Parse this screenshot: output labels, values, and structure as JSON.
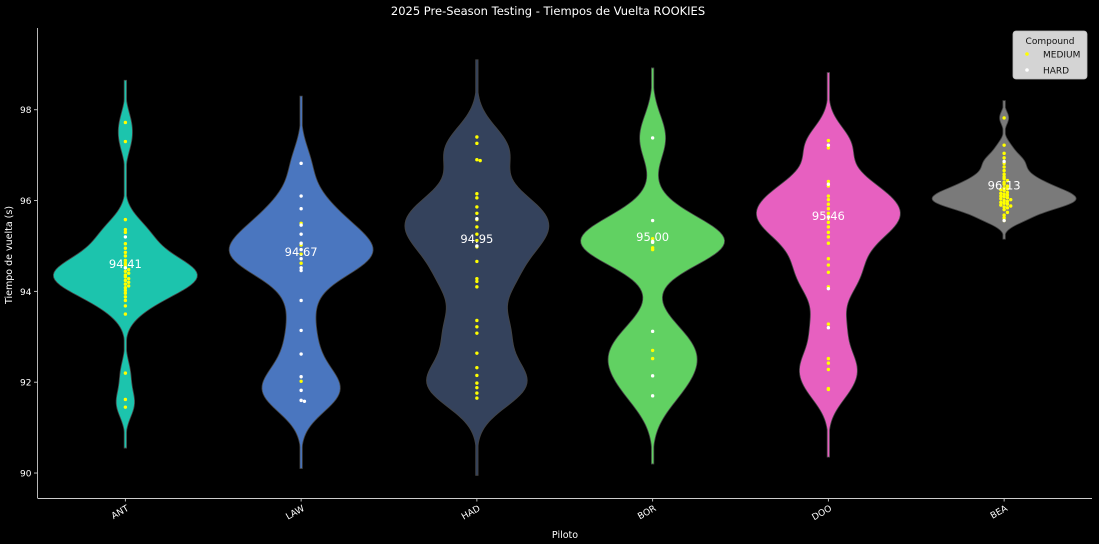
{
  "chart_data": {
    "type": "violin",
    "title": "2025 Pre-Season Testing - Tiempos de Vuelta ROOKIES",
    "xlabel": "Piloto",
    "ylabel": "Tiempo de vuelta (s)",
    "categories": [
      "ANT",
      "LAW",
      "HAD",
      "BOR",
      "DOO",
      "BEA"
    ],
    "ylim": [
      89.45,
      99.8
    ],
    "yticks": [
      90,
      92,
      94,
      96,
      98
    ],
    "ytick_labels": [
      "90",
      "92",
      "94",
      "96",
      "98"
    ],
    "grid": false,
    "legend": {
      "title": "Compound",
      "placement": "top-right",
      "entries": [
        {
          "label": "MEDIUM",
          "color": "#ffff00"
        },
        {
          "label": "HARD",
          "color": "#ffffff"
        }
      ]
    },
    "colors": {
      "background": "#000000",
      "axis": "#cccccc",
      "text": "#ffffff",
      "violins": [
        "#1cc4ad",
        "#4a76bf",
        "#34425c",
        "#61d162",
        "#e760c0",
        "#7a7a7a"
      ]
    },
    "mean_labels": [
      "94.41",
      "94.67",
      "94.95",
      "95.00",
      "95.46",
      "96.13"
    ],
    "violins": [
      {
        "driver": "ANT",
        "mean": 94.41,
        "min": 90.55,
        "max": 98.65,
        "medium": [
          97.72,
          97.3,
          95.58,
          95.36,
          95.3,
          95.05,
          94.95,
          94.86,
          94.78,
          94.68,
          94.62,
          94.57,
          94.52,
          94.48,
          94.44,
          94.4,
          94.36,
          94.32,
          94.28,
          94.24,
          94.2,
          94.16,
          94.12,
          94.08,
          94.02,
          93.96,
          93.88,
          93.8,
          93.68,
          93.5,
          92.2,
          91.62,
          91.45
        ],
        "hard": [
          95.2,
          94.52
        ]
      },
      {
        "driver": "LAW",
        "mean": 94.67,
        "min": 90.1,
        "max": 98.3,
        "medium": [
          95.5,
          95.02,
          94.82,
          94.62,
          92.02
        ],
        "hard": [
          96.82,
          96.1,
          95.82,
          95.46,
          95.26,
          95.06,
          94.92,
          94.72,
          94.52,
          94.46,
          93.8,
          93.14,
          92.62,
          92.12,
          91.82,
          91.6,
          91.58
        ]
      },
      {
        "driver": "HAD",
        "mean": 94.95,
        "min": 89.95,
        "max": 99.1,
        "medium": [
          97.4,
          97.26,
          96.9,
          96.88,
          96.15,
          96.06,
          95.86,
          95.72,
          95.58,
          95.42,
          95.26,
          95.12,
          94.98,
          94.66,
          94.28,
          94.22,
          94.1,
          93.36,
          93.22,
          93.08,
          92.64,
          92.32,
          92.15,
          91.98,
          91.88,
          91.76,
          91.65
        ],
        "hard": [
          95.6,
          95.0
        ]
      },
      {
        "driver": "BOR",
        "mean": 95.0,
        "min": 90.2,
        "max": 98.92,
        "medium": [
          95.16,
          94.96,
          94.92,
          92.7,
          92.52
        ],
        "hard": [
          97.38,
          95.56,
          95.1,
          95.08,
          93.12,
          92.14,
          91.7
        ]
      },
      {
        "driver": "DOO",
        "mean": 95.46,
        "min": 90.35,
        "max": 98.82,
        "medium": [
          97.32,
          97.16,
          96.42,
          96.32,
          96.1,
          96.02,
          95.92,
          95.82,
          95.72,
          95.62,
          95.52,
          95.42,
          95.3,
          95.2,
          95.06,
          94.72,
          94.58,
          94.42,
          94.1,
          93.28,
          92.52,
          92.42,
          92.28,
          91.86,
          91.84
        ],
        "hard": [
          97.22,
          96.36,
          95.64,
          94.06,
          93.2
        ]
      },
      {
        "driver": "BEA",
        "mean": 96.13,
        "min": 95.15,
        "max": 98.2,
        "medium": [
          97.82,
          97.22,
          97.04,
          96.94,
          96.82,
          96.74,
          96.66,
          96.58,
          96.52,
          96.48,
          96.44,
          96.4,
          96.36,
          96.32,
          96.28,
          96.26,
          96.24,
          96.22,
          96.18,
          96.16,
          96.14,
          96.12,
          96.1,
          96.08,
          96.06,
          96.04,
          96.02,
          96.0,
          95.98,
          95.96,
          95.94,
          95.92,
          95.9,
          95.88,
          95.86,
          95.84,
          95.8,
          95.74,
          95.68,
          95.62,
          95.56
        ],
        "hard": [
          96.86,
          95.56
        ]
      }
    ]
  }
}
